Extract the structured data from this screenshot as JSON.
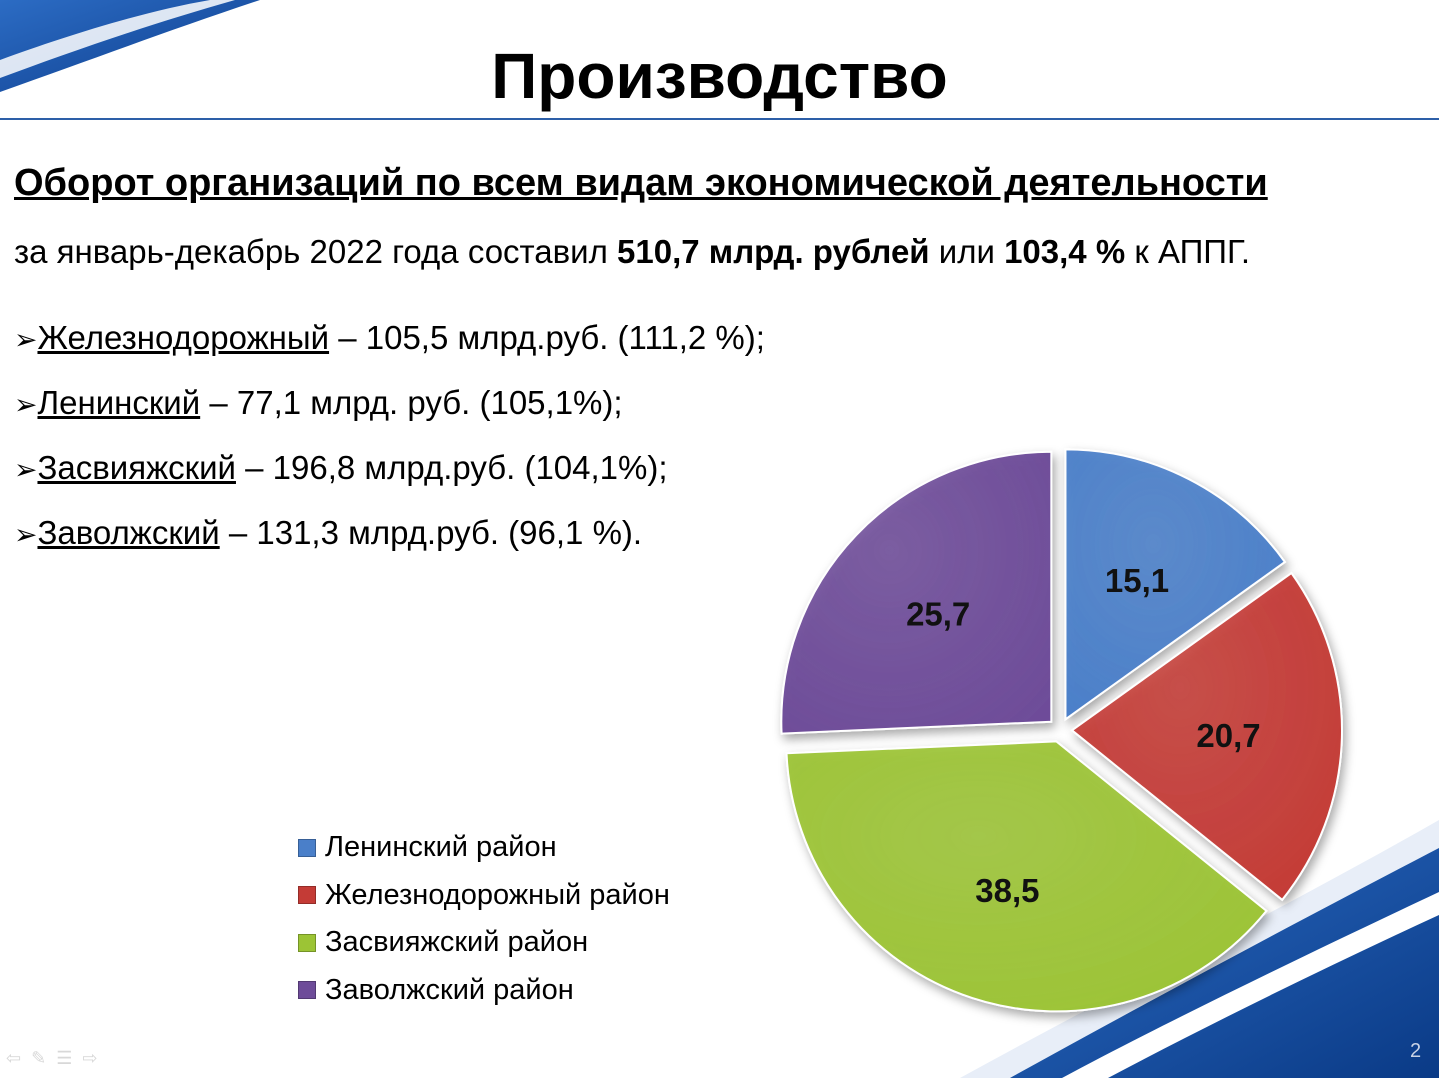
{
  "title": "Производство",
  "heading": "Оборот организаций по всем видам экономической деятельности",
  "summary": {
    "prefix": "за январь-декабрь 2022 года составил ",
    "amount": "510,7 млрд. рублей",
    "middle": " или ",
    "percent": "103,4 %",
    "suffix": " к АППГ."
  },
  "districts": [
    {
      "name": "Железнодорожный",
      "text": " – 105,5 млрд.руб. (111,2 %);"
    },
    {
      "name": "Ленинский",
      "text": " – 77,1 млрд. руб. (105,1%);"
    },
    {
      "name": "Засвияжский",
      "text": " – 196,8 млрд.руб. (104,1%);"
    },
    {
      "name": "Заволжский",
      "text": " – 131,3 млрд.руб. (96,1 %)."
    }
  ],
  "colors": {
    "accent": "#1f4e9c",
    "series": [
      "#4a7fc9",
      "#c43b36",
      "#9cc435",
      "#6e4c99"
    ]
  },
  "chart_data": {
    "type": "pie",
    "labels": [
      "Ленинский район",
      "Железнодорожный район",
      "Засвияжский район",
      "Заволжский район"
    ],
    "values": [
      15.1,
      20.7,
      38.5,
      25.7
    ],
    "data_labels": [
      "15,1",
      "20,7",
      "38,5",
      "25,7"
    ],
    "start_angle": "12 o'clock, clockwise",
    "exploded": true,
    "legend_position": "left"
  },
  "page_number": "2",
  "nav_icons": [
    "arrow-left-icon",
    "pen-icon",
    "menu-icon",
    "arrow-right-icon"
  ]
}
